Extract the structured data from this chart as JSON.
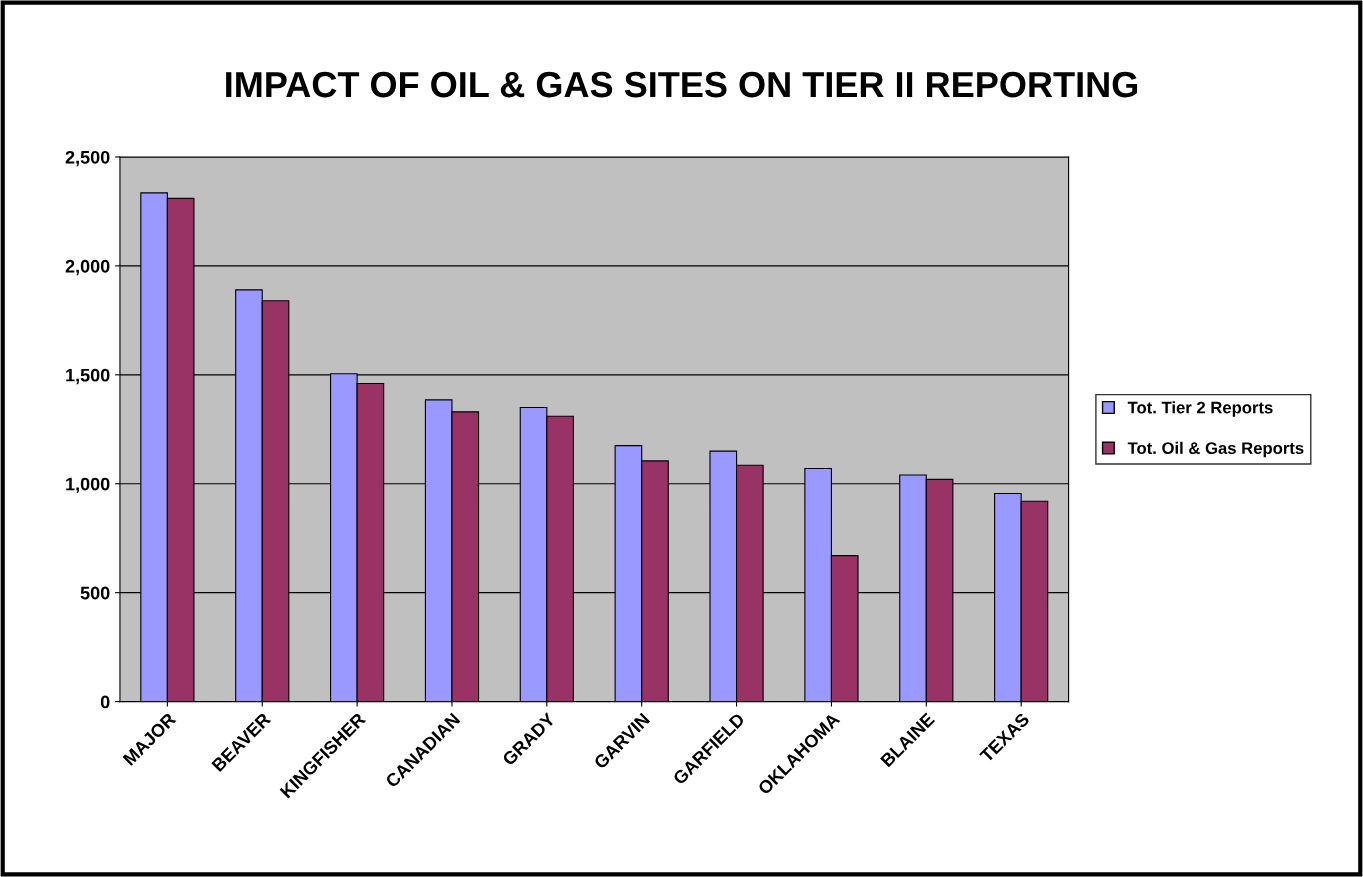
{
  "chart_data": {
    "type": "bar",
    "title": "IMPACT OF OIL & GAS SITES ON TIER II REPORTING",
    "categories": [
      "MAJOR",
      "BEAVER",
      "KINGFISHER",
      "CANADIAN",
      "GRADY",
      "GARVIN",
      "GARFIELD",
      "OKLAHOMA",
      "BLAINE",
      "TEXAS"
    ],
    "series": [
      {
        "name": "Tot. Tier 2 Reports",
        "color": "#9999ff",
        "values": [
          2335,
          1890,
          1505,
          1385,
          1350,
          1175,
          1150,
          1070,
          1040,
          955
        ]
      },
      {
        "name": "Tot. Oil & Gas Reports",
        "color": "#993366",
        "values": [
          2310,
          1840,
          1460,
          1330,
          1310,
          1105,
          1085,
          670,
          1020,
          920
        ]
      }
    ],
    "ylim": [
      0,
      2500
    ],
    "yticks": [
      {
        "value": 0,
        "label": "0"
      },
      {
        "value": 500,
        "label": "500"
      },
      {
        "value": 1000,
        "label": "1,000"
      },
      {
        "value": 1500,
        "label": "1,500"
      },
      {
        "value": 2000,
        "label": "2,000"
      },
      {
        "value": 2500,
        "label": "2,500"
      }
    ],
    "grid": "y",
    "legend": "right"
  }
}
